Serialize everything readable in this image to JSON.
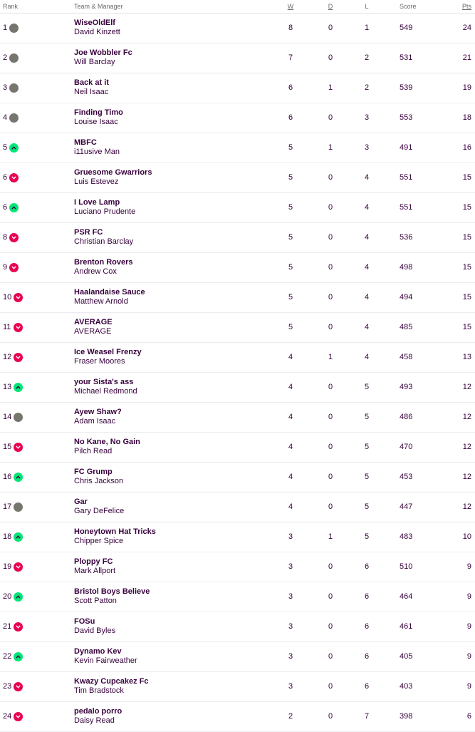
{
  "header": {
    "rank": "Rank",
    "team_manager": "Team & Manager",
    "w": "W",
    "d": "D",
    "l": "L",
    "score": "Score",
    "pts": "Pts"
  },
  "colors": {
    "text": "#37003c",
    "same": "#76766f",
    "up": "#00e676",
    "down": "#e90052"
  },
  "rows": [
    {
      "rank": "1",
      "move": "same",
      "team": "WiseOldElf",
      "manager": "David Kinzett",
      "w": "8",
      "d": "0",
      "l": "1",
      "score": "549",
      "pts": "24"
    },
    {
      "rank": "2",
      "move": "same",
      "team": "Joe Wobbler Fc",
      "manager": "Will Barclay",
      "w": "7",
      "d": "0",
      "l": "2",
      "score": "531",
      "pts": "21"
    },
    {
      "rank": "3",
      "move": "same",
      "team": "Back at it",
      "manager": "Neil Isaac",
      "w": "6",
      "d": "1",
      "l": "2",
      "score": "539",
      "pts": "19"
    },
    {
      "rank": "4",
      "move": "same",
      "team": "Finding Timo",
      "manager": "Louise Isaac",
      "w": "6",
      "d": "0",
      "l": "3",
      "score": "553",
      "pts": "18"
    },
    {
      "rank": "5",
      "move": "up",
      "team": "MBFC",
      "manager": "i11usive Man",
      "w": "5",
      "d": "1",
      "l": "3",
      "score": "491",
      "pts": "16"
    },
    {
      "rank": "6",
      "move": "down",
      "team": "Gruesome Gwarriors",
      "manager": "Luis Estevez",
      "w": "5",
      "d": "0",
      "l": "4",
      "score": "551",
      "pts": "15"
    },
    {
      "rank": "6",
      "move": "up",
      "team": "I Love Lamp",
      "manager": "Luciano Prudente",
      "w": "5",
      "d": "0",
      "l": "4",
      "score": "551",
      "pts": "15"
    },
    {
      "rank": "8",
      "move": "down",
      "team": "PSR FC",
      "manager": "Christian Barclay",
      "w": "5",
      "d": "0",
      "l": "4",
      "score": "536",
      "pts": "15"
    },
    {
      "rank": "9",
      "move": "down",
      "team": "Brenton Rovers",
      "manager": "Andrew Cox",
      "w": "5",
      "d": "0",
      "l": "4",
      "score": "498",
      "pts": "15"
    },
    {
      "rank": "10",
      "move": "down",
      "team": "Haalandaise Sauce",
      "manager": "Matthew Arnold",
      "w": "5",
      "d": "0",
      "l": "4",
      "score": "494",
      "pts": "15"
    },
    {
      "rank": "11",
      "move": "down",
      "team": "AVERAGE",
      "manager": "AVERAGE",
      "w": "5",
      "d": "0",
      "l": "4",
      "score": "485",
      "pts": "15"
    },
    {
      "rank": "12",
      "move": "down",
      "team": "Ice Weasel Frenzy",
      "manager": "Fraser Moores",
      "w": "4",
      "d": "1",
      "l": "4",
      "score": "458",
      "pts": "13"
    },
    {
      "rank": "13",
      "move": "up",
      "team": "your Sista's ass",
      "manager": "Michael Redmond",
      "w": "4",
      "d": "0",
      "l": "5",
      "score": "493",
      "pts": "12"
    },
    {
      "rank": "14",
      "move": "same",
      "team": "Ayew Shaw?",
      "manager": "Adam Isaac",
      "w": "4",
      "d": "0",
      "l": "5",
      "score": "486",
      "pts": "12"
    },
    {
      "rank": "15",
      "move": "down",
      "team": "No Kane, No Gain",
      "manager": "Pilch Read",
      "w": "4",
      "d": "0",
      "l": "5",
      "score": "470",
      "pts": "12"
    },
    {
      "rank": "16",
      "move": "up",
      "team": "FC Grump",
      "manager": "Chris Jackson",
      "w": "4",
      "d": "0",
      "l": "5",
      "score": "453",
      "pts": "12"
    },
    {
      "rank": "17",
      "move": "same",
      "team": "Gar",
      "manager": "Gary DeFelice",
      "w": "4",
      "d": "0",
      "l": "5",
      "score": "447",
      "pts": "12"
    },
    {
      "rank": "18",
      "move": "up",
      "team": "Honeytown Hat Tricks",
      "manager": "Chipper Spice",
      "w": "3",
      "d": "1",
      "l": "5",
      "score": "483",
      "pts": "10"
    },
    {
      "rank": "19",
      "move": "down",
      "team": "Ploppy FC",
      "manager": "Mark Allport",
      "w": "3",
      "d": "0",
      "l": "6",
      "score": "510",
      "pts": "9"
    },
    {
      "rank": "20",
      "move": "up",
      "team": "Bristol Boys Believe",
      "manager": "Scott Patton",
      "w": "3",
      "d": "0",
      "l": "6",
      "score": "464",
      "pts": "9"
    },
    {
      "rank": "21",
      "move": "down",
      "team": "FOSu",
      "manager": "David Byles",
      "w": "3",
      "d": "0",
      "l": "6",
      "score": "461",
      "pts": "9"
    },
    {
      "rank": "22",
      "move": "up",
      "team": "Dynamo Kev",
      "manager": "Kevin Fairweather",
      "w": "3",
      "d": "0",
      "l": "6",
      "score": "405",
      "pts": "9"
    },
    {
      "rank": "23",
      "move": "down",
      "team": "Kwazy Cupcakez Fc",
      "manager": "Tim Bradstock",
      "w": "3",
      "d": "0",
      "l": "6",
      "score": "403",
      "pts": "9"
    },
    {
      "rank": "24",
      "move": "down",
      "team": "pedalo porro",
      "manager": "Daisy Read",
      "w": "2",
      "d": "0",
      "l": "7",
      "score": "398",
      "pts": "6"
    }
  ]
}
